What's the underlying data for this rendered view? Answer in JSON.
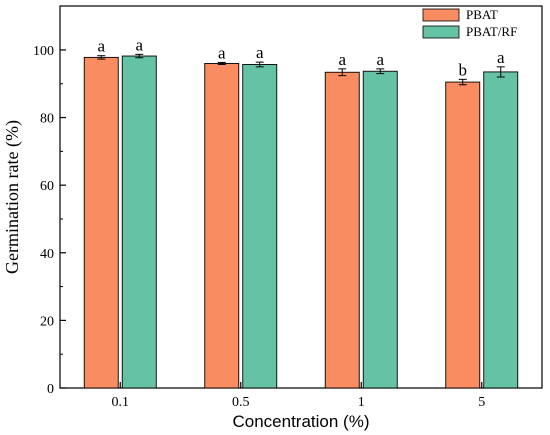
{
  "chart_data": {
    "type": "bar",
    "xlabel": "Concentration (%)",
    "ylabel": "Germination rate (%)",
    "ylim": [
      0,
      113
    ],
    "yticks": [
      0,
      20,
      40,
      60,
      80,
      100
    ],
    "categories": [
      "0.1",
      "0.5",
      "1",
      "5"
    ],
    "legend_position": "top-right",
    "grid": false,
    "series": [
      {
        "name": "PBAT",
        "color": "#F98C60",
        "values": [
          97.8,
          96.0,
          93.4,
          90.5
        ],
        "errors": [
          0.5,
          0.3,
          1.0,
          0.8
        ],
        "labels": [
          "a",
          "a",
          "a",
          "b"
        ]
      },
      {
        "name": "PBAT/RF",
        "color": "#66C2A5",
        "values": [
          98.2,
          95.7,
          93.7,
          93.5
        ],
        "errors": [
          0.5,
          0.7,
          0.7,
          1.5
        ],
        "labels": [
          "a",
          "a",
          "a",
          "a"
        ]
      }
    ]
  }
}
